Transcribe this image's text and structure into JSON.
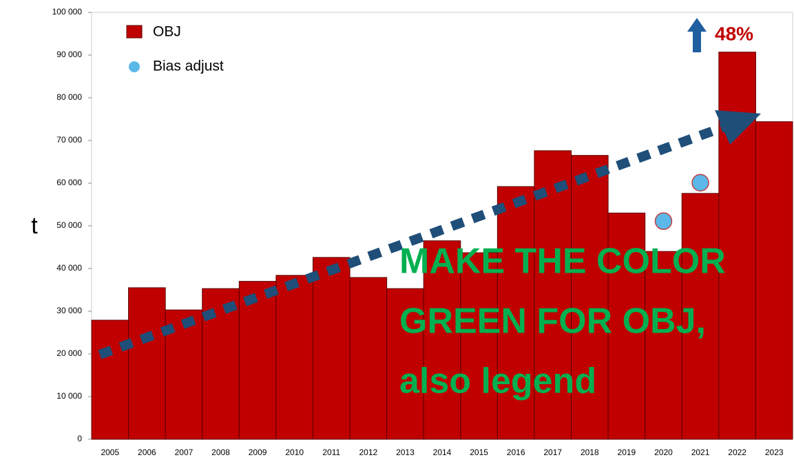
{
  "chart_data": {
    "type": "bar",
    "y_label": "t",
    "categories": [
      "2005",
      "2006",
      "2007",
      "2008",
      "2009",
      "2010",
      "2011",
      "2012",
      "2013",
      "2014",
      "2015",
      "2016",
      "2017",
      "2018",
      "2019",
      "2020",
      "2021",
      "2022",
      "2023"
    ],
    "series": [
      {
        "name": "OBJ",
        "type": "bar",
        "color": "#c00000",
        "values": [
          27900,
          35500,
          30300,
          35300,
          37000,
          38400,
          42600,
          37900,
          35300,
          46500,
          43700,
          59200,
          67600,
          66500,
          53000,
          44000,
          57600,
          90700,
          74400
        ]
      },
      {
        "name": "Bias adjust",
        "type": "scatter",
        "color": "#5bb8e8",
        "values": [
          null,
          null,
          null,
          null,
          null,
          null,
          null,
          null,
          null,
          null,
          null,
          null,
          null,
          null,
          null,
          51100,
          60100,
          null,
          null
        ]
      }
    ],
    "ylim": [
      0,
      100000
    ],
    "yticks": [
      0,
      {
        "value": 10000,
        "label": "10 000"
      },
      {
        "value": 20000,
        "label": "20 000"
      },
      {
        "value": 30000,
        "label": "30 000"
      },
      {
        "value": 40000,
        "label": "40 000"
      },
      {
        "value": 50000,
        "label": "50 000"
      },
      {
        "value": 60000,
        "label": "60 000"
      },
      {
        "value": 70000,
        "label": "70 000"
      },
      {
        "value": 80000,
        "label": "80 000"
      },
      {
        "value": 90000,
        "label": "90 000"
      },
      {
        "value": 100000,
        "label": "100 000"
      }
    ],
    "grid": false,
    "legend": "top-left",
    "annotations": [
      {
        "text": "48%",
        "color": "#c00000"
      },
      {
        "lines": [
          "MAKE THE COLOR",
          "GREEN FOR OBJ,",
          "also legend"
        ],
        "color": "#00b050"
      }
    ]
  }
}
